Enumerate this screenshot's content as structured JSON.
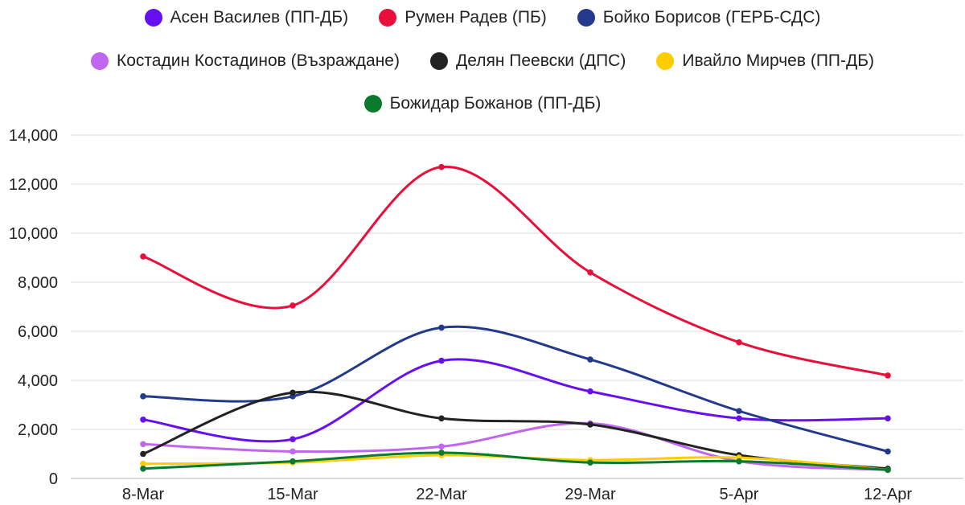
{
  "chart_data": {
    "type": "line",
    "categories": [
      "8-Mar",
      "15-Mar",
      "22-Mar",
      "29-Mar",
      "5-Apr",
      "12-Apr"
    ],
    "ylim": [
      0,
      14000
    ],
    "yticks": [
      0,
      2000,
      4000,
      6000,
      8000,
      10000,
      12000,
      14000
    ],
    "ytick_labels": [
      "0",
      "2,000",
      "4,000",
      "6,000",
      "8,000",
      "10,000",
      "12,000",
      "14,000"
    ],
    "grid": true,
    "legend_position": "top",
    "series": [
      {
        "name": "Асен Василев (ПП-ДБ)",
        "color": "#6610f2",
        "values": [
          2400,
          1600,
          4800,
          3550,
          2450,
          2450
        ]
      },
      {
        "name": "Румен Радев (ПБ)",
        "color": "#e8103a",
        "values": [
          9050,
          7050,
          12700,
          8400,
          5550,
          4200
        ]
      },
      {
        "name": "Бойко Борисов (ГЕРБ-СДС)",
        "color": "#233a8c",
        "values": [
          3350,
          3350,
          6150,
          4850,
          2750,
          1100
        ]
      },
      {
        "name": "Костадин Костадинов (Възраждане)",
        "color": "#c066f0",
        "values": [
          1400,
          1100,
          1300,
          2250,
          700,
          350
        ]
      },
      {
        "name": "Делян Пеевски (ДПС)",
        "color": "#222222",
        "values": [
          1000,
          3500,
          2450,
          2200,
          950,
          400
        ]
      },
      {
        "name": "Ивайло Мирчев (ПП-ДБ)",
        "color": "#ffcc00",
        "values": [
          600,
          650,
          950,
          750,
          850,
          350
        ]
      },
      {
        "name": "Божидар Божанов (ПП-ДБ)",
        "color": "#0a7a2e",
        "values": [
          400,
          700,
          1050,
          650,
          700,
          350
        ]
      }
    ]
  },
  "legend": {
    "rows": [
      [
        0,
        1,
        2
      ],
      [
        3,
        4,
        5
      ],
      [
        6
      ]
    ]
  }
}
